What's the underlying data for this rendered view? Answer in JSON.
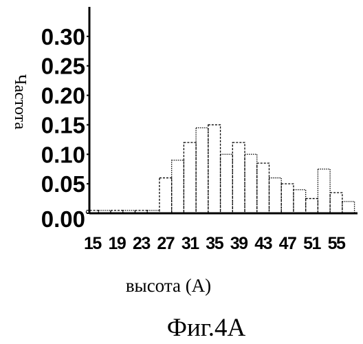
{
  "chart_data": {
    "type": "bar",
    "ylabel": "Частота",
    "xlabel": "высота (А)",
    "caption": "Фиг.4А",
    "ylim": [
      0,
      0.35
    ],
    "xlim": [
      14.5,
      58.5
    ],
    "yticks": [
      "0.00",
      "0.05",
      "0.10",
      "0.15",
      "0.20",
      "0.25",
      "0.30"
    ],
    "xticks": [
      "15",
      "19",
      "23",
      "27",
      "31",
      "35",
      "39",
      "43",
      "47",
      "51",
      "55"
    ],
    "bin_width": 2,
    "grid": false,
    "bins_x": [
      15,
      17,
      19,
      21,
      23,
      25,
      27,
      29,
      31,
      33,
      35,
      37,
      39,
      41,
      43,
      45,
      47,
      49,
      51,
      53,
      55,
      57
    ],
    "values": [
      0.005,
      0.005,
      0.005,
      0.005,
      0.005,
      0.005,
      0.06,
      0.09,
      0.12,
      0.145,
      0.15,
      0.1,
      0.12,
      0.1,
      0.085,
      0.06,
      0.05,
      0.04,
      0.025,
      0.075,
      0.035,
      0.02
    ]
  }
}
